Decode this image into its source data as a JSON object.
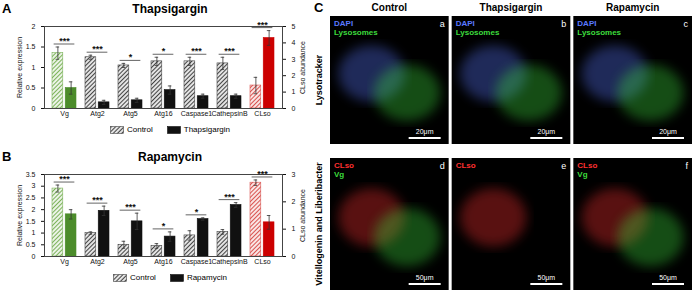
{
  "chart_data": [
    {
      "type": "bar",
      "title": "Thapsigargin",
      "ylabel": "Relative expression",
      "y2label": "CLso abundance",
      "categories": [
        "Vg",
        "Atg2",
        "Atg5",
        "Atg16",
        "Caspase1",
        "CathepsinB",
        "CLso"
      ],
      "ylim": [
        0,
        2
      ],
      "yticks": [
        0,
        0.5,
        1,
        1.5,
        2
      ],
      "y2lim": [
        0,
        5
      ],
      "y2ticks": [
        0,
        1,
        2,
        3,
        4,
        5
      ],
      "annotations": [
        "***",
        "***",
        "*",
        "*",
        "***",
        "***",
        "***"
      ],
      "legend": "bottom",
      "series": [
        {
          "name": "Control",
          "values": [
            1.35,
            1.25,
            1.05,
            1.15,
            1.15,
            1.1,
            null
          ],
          "errors": [
            0.15,
            0.05,
            0.05,
            0.1,
            0.1,
            0.15,
            null
          ],
          "colors": [
            "#7cb35a",
            "#444444",
            "#444444",
            "#444444",
            "#444444",
            "#444444",
            null
          ]
        },
        {
          "name": "Thapsigargin",
          "values": [
            0.5,
            0.15,
            0.2,
            0.45,
            0.3,
            0.3,
            null
          ],
          "errors": [
            0.15,
            0.05,
            0.05,
            0.1,
            0.05,
            0.05,
            null
          ],
          "colors": [
            "#4c8c2b",
            "#111111",
            "#111111",
            "#111111",
            "#111111",
            "#111111",
            null
          ]
        },
        {
          "name": "Control",
          "axis": "y2",
          "values": [
            null,
            null,
            null,
            null,
            null,
            null,
            1.4
          ],
          "errors": [
            null,
            null,
            null,
            null,
            null,
            null,
            0.5
          ],
          "color": "#d9534f"
        },
        {
          "name": "Thapsigargin",
          "axis": "y2",
          "values": [
            null,
            null,
            null,
            null,
            null,
            null,
            4.3
          ],
          "errors": [
            null,
            null,
            null,
            null,
            null,
            null,
            0.45
          ],
          "color": "#cc0000"
        }
      ]
    },
    {
      "type": "bar",
      "title": "Rapamycin",
      "ylabel": "Relative expression",
      "y2label": "CLso abundance",
      "categories": [
        "Vg",
        "Atg2",
        "Atg5",
        "Atg16",
        "Caspase1",
        "CathepsinB",
        "CLso"
      ],
      "ylim": [
        0,
        3.5
      ],
      "yticks": [
        0,
        0.5,
        1,
        1.5,
        2,
        2.5,
        3,
        3.5
      ],
      "y2lim": [
        0,
        3
      ],
      "y2ticks": [
        0,
        1,
        2,
        3
      ],
      "annotations": [
        "***",
        "***",
        "***",
        "*",
        "*",
        "***",
        "***"
      ],
      "legend": "bottom",
      "series": [
        {
          "name": "Control",
          "values": [
            2.9,
            1.0,
            0.5,
            0.45,
            0.9,
            1.05,
            null
          ],
          "errors": [
            0.15,
            0.05,
            0.15,
            0.1,
            0.2,
            0.1,
            null
          ],
          "colors": [
            "#7cb35a",
            "#444444",
            "#444444",
            "#444444",
            "#444444",
            "#444444",
            null
          ]
        },
        {
          "name": "Rapamycin",
          "values": [
            1.8,
            1.95,
            1.5,
            0.85,
            1.6,
            2.2,
            null
          ],
          "errors": [
            0.2,
            0.2,
            0.35,
            0.2,
            0.05,
            0.1,
            null
          ],
          "colors": [
            "#4c8c2b",
            "#111111",
            "#111111",
            "#111111",
            "#111111",
            "#111111",
            null
          ]
        },
        {
          "name": "Control",
          "axis": "y2",
          "values": [
            null,
            null,
            null,
            null,
            null,
            null,
            2.7
          ],
          "errors": [
            null,
            null,
            null,
            null,
            null,
            null,
            0.1
          ],
          "color": "#d9534f"
        },
        {
          "name": "Rapamycin",
          "axis": "y2",
          "values": [
            null,
            null,
            null,
            null,
            null,
            null,
            1.25
          ],
          "errors": [
            null,
            null,
            null,
            null,
            null,
            null,
            0.25
          ],
          "color": "#cc0000"
        }
      ]
    }
  ],
  "figure": {
    "panel_labels": [
      "A",
      "B",
      "C"
    ],
    "columns": [
      "Control",
      "Thapsigargin",
      "Rapamycin"
    ],
    "rows": [
      "Lysotracker",
      "Vitellogenin and Liberibacter"
    ],
    "images": [
      [
        {
          "letter": "a",
          "labels": [
            {
              "text": "DAPI",
              "color": "#5a78ff"
            },
            {
              "text": "Lysosomes",
              "color": "#3ddc3d"
            }
          ],
          "scale_bar": "20μm"
        },
        {
          "letter": "b",
          "labels": [
            {
              "text": "DAPI",
              "color": "#5a78ff"
            },
            {
              "text": "Lysosomes",
              "color": "#3ddc3d"
            }
          ],
          "scale_bar": "20μm"
        },
        {
          "letter": "c",
          "labels": [
            {
              "text": "DAPI",
              "color": "#5a78ff"
            },
            {
              "text": "Lysosomes",
              "color": "#3ddc3d"
            }
          ],
          "scale_bar": "20μm"
        }
      ],
      [
        {
          "letter": "d",
          "labels": [
            {
              "text": "CLso",
              "color": "#ff3030"
            },
            {
              "text": "Vg",
              "color": "#3ddc3d"
            }
          ],
          "scale_bar": "50μm"
        },
        {
          "letter": "e",
          "labels": [
            {
              "text": "CLso",
              "color": "#ff3030"
            }
          ],
          "scale_bar": "50μm"
        },
        {
          "letter": "f",
          "labels": [
            {
              "text": "CLso",
              "color": "#ff3030"
            },
            {
              "text": "Vg",
              "color": "#3ddc3d"
            }
          ],
          "scale_bar": "50μm"
        }
      ]
    ]
  }
}
